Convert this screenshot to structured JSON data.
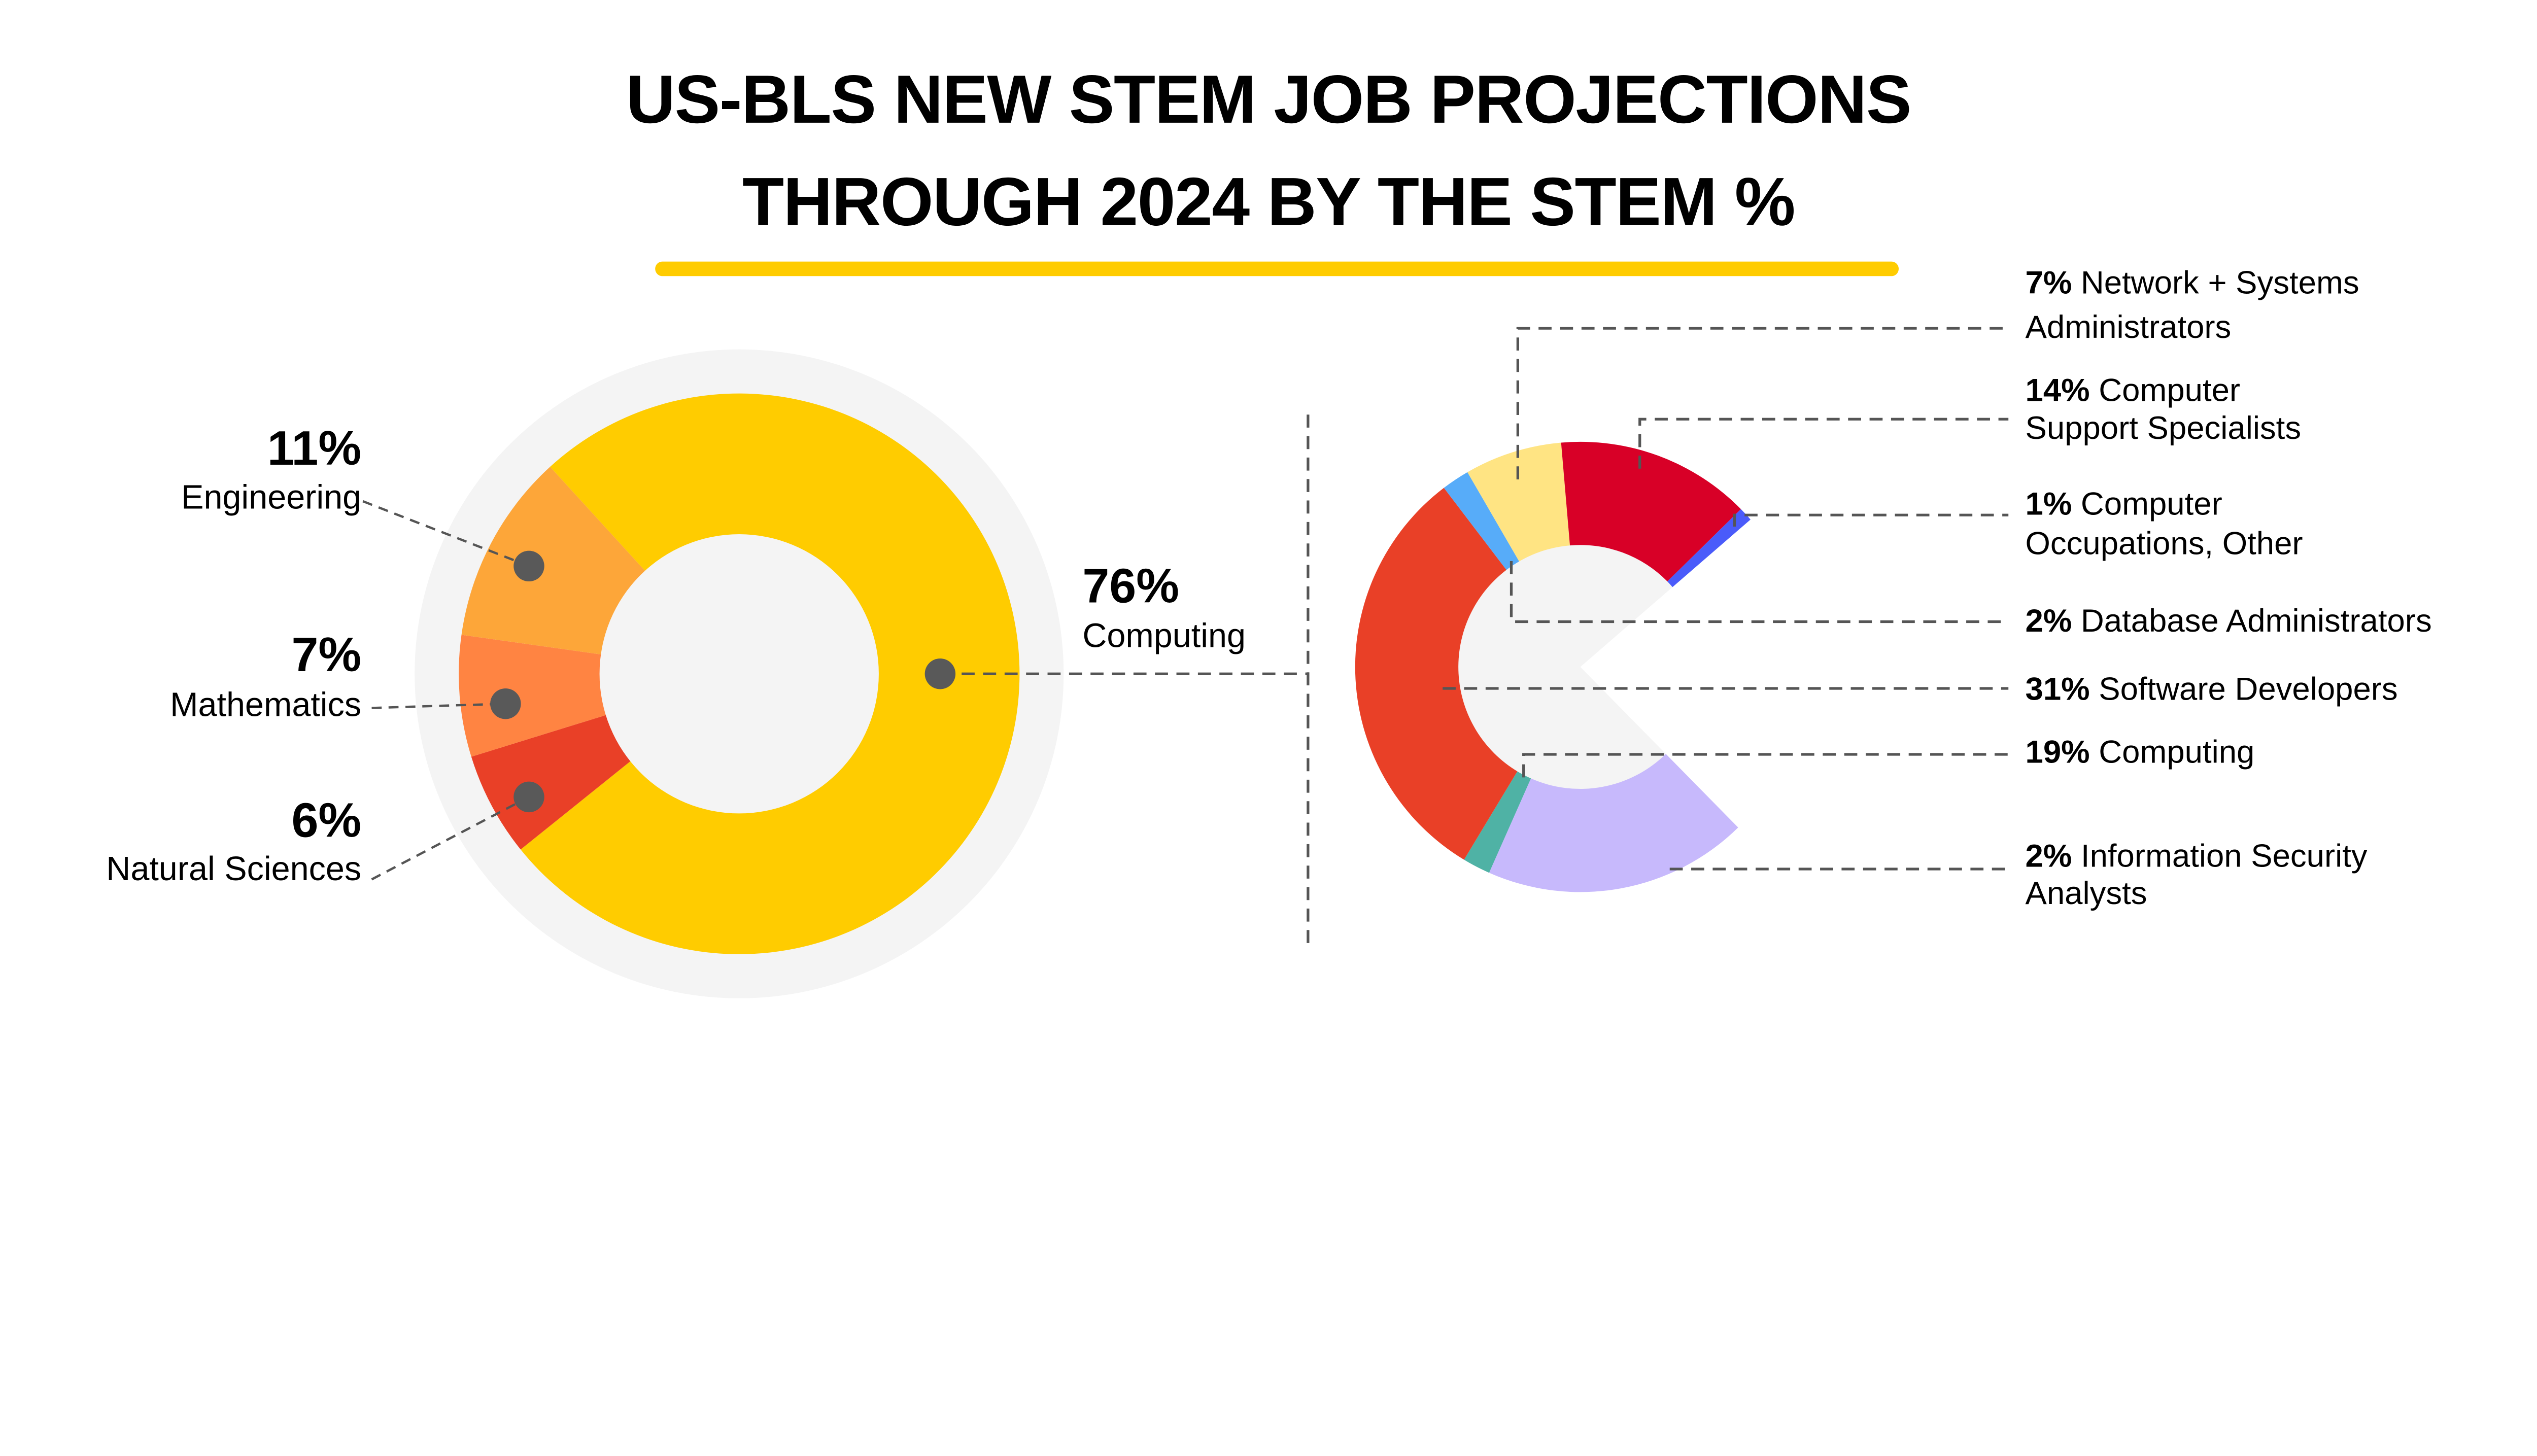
{
  "title": {
    "line1": "US-BLS NEW STEM JOB PROJECTIONS",
    "line2": "THROUGH 2024 BY THE STEM %",
    "underline_color": "#FFCC00"
  },
  "chart_data": [
    {
      "type": "pie",
      "variant": "donut",
      "slices": [
        {
          "label": "Computing",
          "pct_label": "76%",
          "value": 76,
          "color": "#FFCC00"
        },
        {
          "label": "Natural Sciences",
          "pct_label": "6%",
          "value": 6,
          "color": "#E94027"
        },
        {
          "label": "Mathematics",
          "pct_label": "7%",
          "value": 7,
          "color": "#FF8442"
        },
        {
          "label": "Engineering",
          "pct_label": "11%",
          "value": 11,
          "color": "#FDA639"
        }
      ],
      "background_color": "#F4F4F4",
      "marker_color": "#595959"
    },
    {
      "type": "pie",
      "variant": "partial-donut",
      "segments": [
        {
          "value": 19,
          "color": "#C7B9FC"
        },
        {
          "value": 2,
          "color": "#4FB2A5"
        },
        {
          "value": 31,
          "color": "#E94027"
        },
        {
          "value": 2,
          "color": "#57ACF9"
        },
        {
          "value": 7,
          "color": "#FFE483"
        },
        {
          "value": 14,
          "color": "#D80027"
        },
        {
          "value": 1,
          "color": "#4A5BFA"
        }
      ],
      "labels": [
        {
          "pct": "7%",
          "lines": [
            "Network + Systems",
            "Administrators"
          ]
        },
        {
          "pct": "14%",
          "lines": [
            "Computer",
            "Support Specialists"
          ]
        },
        {
          "pct": "1%",
          "lines": [
            "Computer",
            "Occupations, Other"
          ]
        },
        {
          "pct": "2%",
          "lines": [
            "Database Administrators"
          ]
        },
        {
          "pct": "31%",
          "lines": [
            "Software Developers"
          ]
        },
        {
          "pct": "19%",
          "lines": [
            "Computing"
          ]
        },
        {
          "pct": "2%",
          "lines": [
            "Information Security",
            "Analysts"
          ]
        }
      ],
      "inner_color": "#F4F4F4"
    }
  ]
}
